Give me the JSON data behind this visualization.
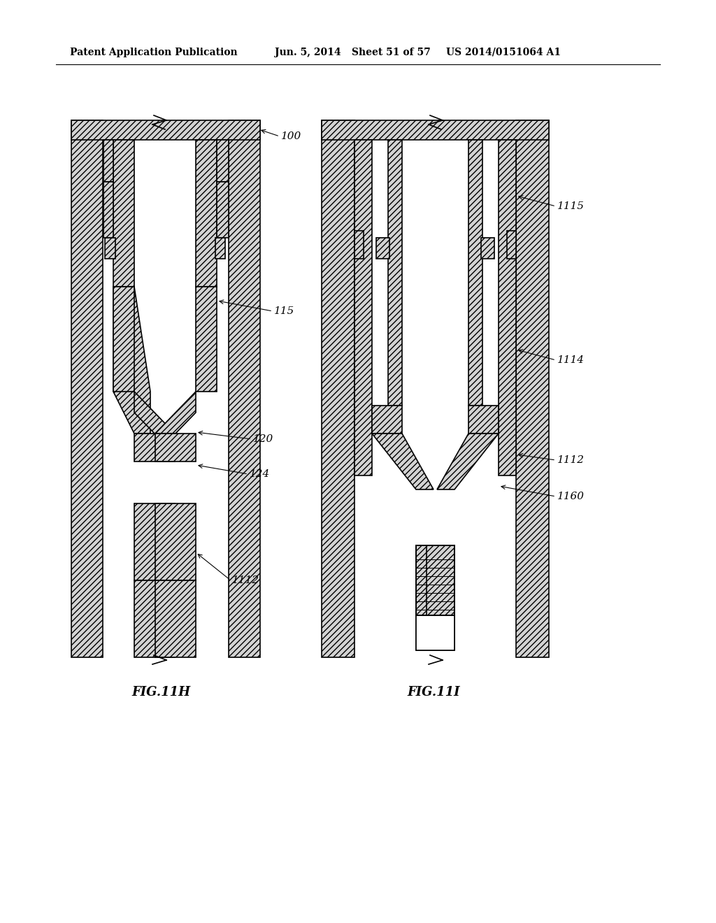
{
  "bg_color": "#ffffff",
  "header_text": "Patent Application Publication",
  "header_date": "Jun. 5, 2014",
  "header_sheet": "Sheet 51 of 57",
  "header_patent": "US 2014/0151064 A1",
  "fig_left_label": "FIG.11H",
  "fig_right_label": "FIG.11I",
  "label_100": "100",
  "label_115": "115",
  "label_120": "120",
  "label_124": "124",
  "label_1112_left": "1112",
  "label_1115": "1115",
  "label_1114": "1114",
  "label_1112_right": "1112",
  "label_1160": "1160"
}
